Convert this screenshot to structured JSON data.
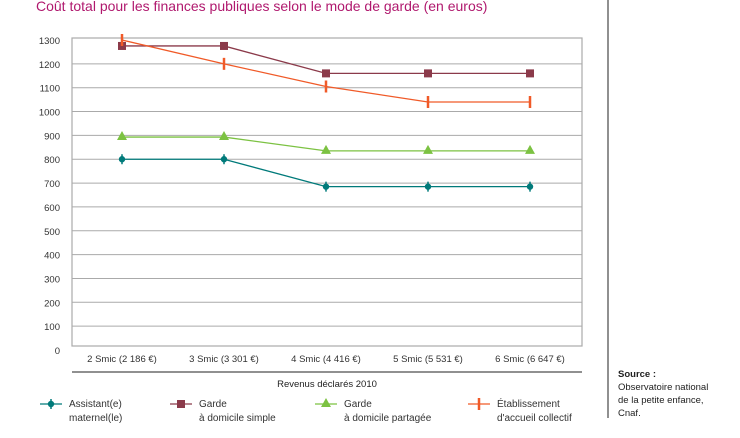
{
  "chart_data": {
    "type": "line",
    "title": "Coût total pour les finances publiques selon le mode de garde (en euros)",
    "xlabel": "Revenus déclarés 2010",
    "ylabel": "",
    "ylim": [
      0,
      1300
    ],
    "yticks": [
      0,
      100,
      200,
      300,
      400,
      500,
      600,
      700,
      800,
      900,
      1000,
      1100,
      1200,
      1300
    ],
    "categories": [
      "2 Smic (2 186 €)",
      "3 Smic (3 301 €)",
      "4 Smic (4 416 €)",
      "5 Smic (5 531 €)",
      "6 Smic (6 647 €)"
    ],
    "grid": true,
    "legend_position": "bottom",
    "series": [
      {
        "name": "Assistant(e) maternel(le)",
        "line1": "Assistant(e)",
        "line2": "maternel(le)",
        "color": "#007a7a",
        "marker": "diamond",
        "values": [
          800,
          800,
          685,
          685,
          685
        ]
      },
      {
        "name": "Garde à domicile simple",
        "line1": "Garde",
        "line2": "à domicile simple",
        "color": "#8b3a4a",
        "marker": "square",
        "values": [
          1275,
          1275,
          1160,
          1160,
          1160
        ]
      },
      {
        "name": "Garde à domicile partagée",
        "line1": "Garde",
        "line2": "à domicile partagée",
        "color": "#7cc242",
        "marker": "triangle",
        "values": [
          893,
          893,
          835,
          835,
          835
        ]
      },
      {
        "name": "Établissement d'accueil collectif",
        "line1": "Établissement",
        "line2": "d'accueil collectif",
        "color": "#f05a28",
        "marker": "bar",
        "values": [
          1300,
          1200,
          1105,
          1040,
          1040
        ]
      }
    ]
  },
  "source": {
    "label": "Source :",
    "lines": [
      "Observatoire national",
      "de la petite enfance,",
      "Cnaf."
    ]
  }
}
